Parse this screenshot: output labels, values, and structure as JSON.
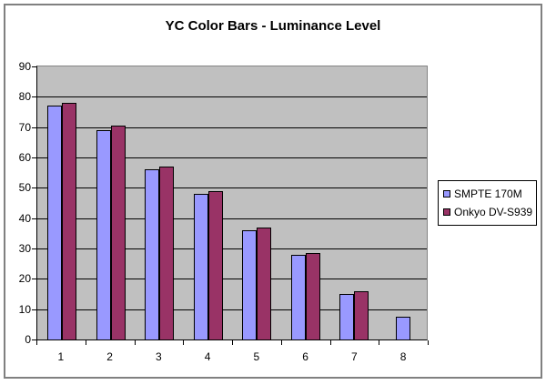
{
  "chart_data": {
    "type": "bar",
    "title": "YC Color Bars - Luminance Level",
    "xlabel": "",
    "ylabel": "",
    "categories": [
      "1",
      "2",
      "3",
      "4",
      "5",
      "6",
      "7",
      "8"
    ],
    "series": [
      {
        "name": "SMPTE 170M",
        "color": "#9999FF",
        "values": [
          77,
          69,
          56,
          48,
          36,
          28,
          15,
          7.5
        ]
      },
      {
        "name": "Onkyo DV-S939",
        "color": "#993366",
        "values": [
          78,
          70.5,
          57,
          49,
          37,
          28.5,
          16,
          0
        ]
      }
    ],
    "ylim": [
      0,
      90
    ],
    "yticks": [
      0,
      10,
      20,
      30,
      40,
      50,
      60,
      70,
      80,
      90
    ],
    "grid": true,
    "legend_position": "right",
    "colors": {
      "plot_background": "#C0C0C0",
      "gridline": "#000000",
      "axis": "#000000",
      "plot_border": "#848484",
      "chart_border": "#808080",
      "text": "#000000",
      "chart_background": "#FFFFFF"
    }
  }
}
